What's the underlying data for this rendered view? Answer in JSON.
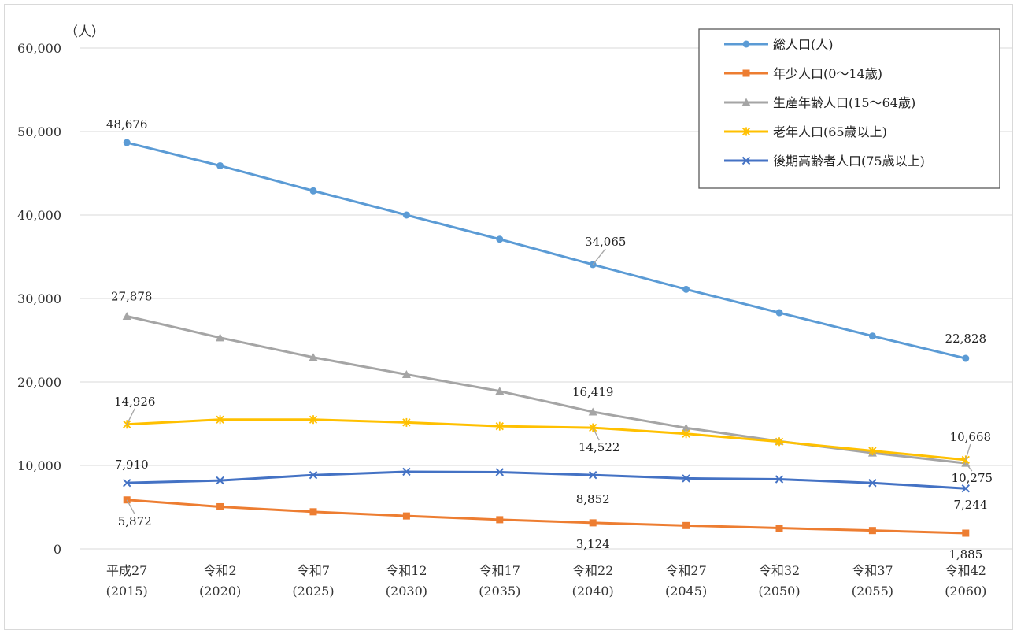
{
  "chart_data": {
    "type": "line",
    "unit_label": "（人）",
    "ylim": [
      0,
      60000
    ],
    "yticks": [
      0,
      10000,
      20000,
      30000,
      40000,
      50000,
      60000
    ],
    "ytick_labels": [
      "0",
      "10,000",
      "20,000",
      "30,000",
      "40,000",
      "50,000",
      "60,000"
    ],
    "grid": true,
    "legend_position": "top-right",
    "categories": [
      {
        "era": "平成27",
        "year": "(2015)"
      },
      {
        "era": "令和2",
        "year": "(2020)"
      },
      {
        "era": "令和7",
        "year": "(2025)"
      },
      {
        "era": "令和12",
        "year": "(2030)"
      },
      {
        "era": "令和17",
        "year": "(2035)"
      },
      {
        "era": "令和22",
        "year": "(2040)"
      },
      {
        "era": "令和27",
        "year": "(2045)"
      },
      {
        "era": "令和32",
        "year": "(2050)"
      },
      {
        "era": "令和37",
        "year": "(2055)"
      },
      {
        "era": "令和42",
        "year": "(2060)"
      }
    ],
    "series": [
      {
        "name": "総人口(人)",
        "color": "#5b9bd5",
        "marker": "circle",
        "values": [
          48676,
          45900,
          42900,
          40000,
          37100,
          34065,
          31100,
          28300,
          25500,
          22828
        ],
        "labels": [
          {
            "index": 0,
            "text": "48,676"
          },
          {
            "index": 5,
            "text": "34,065"
          },
          {
            "index": 9,
            "text": "22,828"
          }
        ]
      },
      {
        "name": "年少人口(0～14歳)",
        "color": "#ed7d31",
        "marker": "square",
        "values": [
          5872,
          5050,
          4450,
          3950,
          3500,
          3124,
          2800,
          2500,
          2200,
          1885
        ],
        "labels": [
          {
            "index": 0,
            "text": "5,872"
          },
          {
            "index": 5,
            "text": "3,124"
          },
          {
            "index": 9,
            "text": "1,885"
          }
        ]
      },
      {
        "name": "生産年齢人口(15～64歳)",
        "color": "#a5a5a5",
        "marker": "triangle",
        "values": [
          27878,
          25300,
          22950,
          20900,
          18900,
          16419,
          14500,
          12900,
          11500,
          10275
        ],
        "labels": [
          {
            "index": 0,
            "text": "27,878"
          },
          {
            "index": 5,
            "text": "16,419"
          },
          {
            "index": 9,
            "text": "10,275"
          }
        ]
      },
      {
        "name": "老年人口(65歳以上)",
        "color": "#ffc000",
        "marker": "star",
        "values": [
          14926,
          15500,
          15500,
          15150,
          14700,
          14522,
          13800,
          12850,
          11750,
          10668
        ],
        "labels": [
          {
            "index": 0,
            "text": "14,926"
          },
          {
            "index": 5,
            "text": "14,522"
          },
          {
            "index": 9,
            "text": "10,668"
          }
        ]
      },
      {
        "name": "後期高齢者人口(75歳以上)",
        "color": "#4472c4",
        "marker": "x",
        "values": [
          7910,
          8200,
          8850,
          9250,
          9200,
          8852,
          8450,
          8350,
          7900,
          7244
        ],
        "labels": [
          {
            "index": 0,
            "text": "7,910"
          },
          {
            "index": 5,
            "text": "8,852"
          },
          {
            "index": 9,
            "text": "7,244"
          }
        ]
      }
    ]
  }
}
